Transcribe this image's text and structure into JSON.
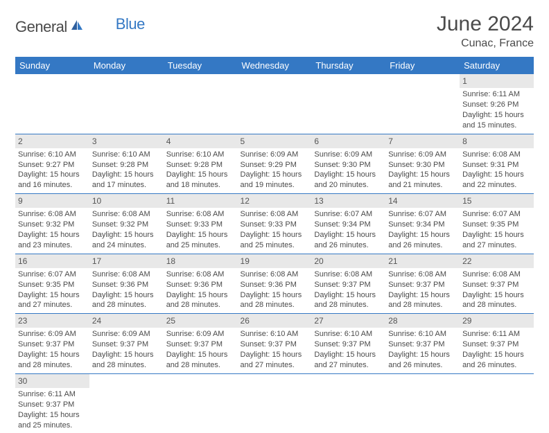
{
  "logo": {
    "part1": "General",
    "part2": "Blue"
  },
  "title": "June 2024",
  "location": "Cunac, France",
  "header_bg": "#3478c4",
  "header_fg": "#ffffff",
  "cell_border": "#3478c4",
  "daynum_bg": "#e8e8e8",
  "text_color": "#4a4a4a",
  "days": [
    "Sunday",
    "Monday",
    "Tuesday",
    "Wednesday",
    "Thursday",
    "Friday",
    "Saturday"
  ],
  "weeks": [
    [
      null,
      null,
      null,
      null,
      null,
      null,
      {
        "n": "1",
        "sr": "Sunrise: 6:11 AM",
        "ss": "Sunset: 9:26 PM",
        "dl": "Daylight: 15 hours and 15 minutes."
      }
    ],
    [
      {
        "n": "2",
        "sr": "Sunrise: 6:10 AM",
        "ss": "Sunset: 9:27 PM",
        "dl": "Daylight: 15 hours and 16 minutes."
      },
      {
        "n": "3",
        "sr": "Sunrise: 6:10 AM",
        "ss": "Sunset: 9:28 PM",
        "dl": "Daylight: 15 hours and 17 minutes."
      },
      {
        "n": "4",
        "sr": "Sunrise: 6:10 AM",
        "ss": "Sunset: 9:28 PM",
        "dl": "Daylight: 15 hours and 18 minutes."
      },
      {
        "n": "5",
        "sr": "Sunrise: 6:09 AM",
        "ss": "Sunset: 9:29 PM",
        "dl": "Daylight: 15 hours and 19 minutes."
      },
      {
        "n": "6",
        "sr": "Sunrise: 6:09 AM",
        "ss": "Sunset: 9:30 PM",
        "dl": "Daylight: 15 hours and 20 minutes."
      },
      {
        "n": "7",
        "sr": "Sunrise: 6:09 AM",
        "ss": "Sunset: 9:30 PM",
        "dl": "Daylight: 15 hours and 21 minutes."
      },
      {
        "n": "8",
        "sr": "Sunrise: 6:08 AM",
        "ss": "Sunset: 9:31 PM",
        "dl": "Daylight: 15 hours and 22 minutes."
      }
    ],
    [
      {
        "n": "9",
        "sr": "Sunrise: 6:08 AM",
        "ss": "Sunset: 9:32 PM",
        "dl": "Daylight: 15 hours and 23 minutes."
      },
      {
        "n": "10",
        "sr": "Sunrise: 6:08 AM",
        "ss": "Sunset: 9:32 PM",
        "dl": "Daylight: 15 hours and 24 minutes."
      },
      {
        "n": "11",
        "sr": "Sunrise: 6:08 AM",
        "ss": "Sunset: 9:33 PM",
        "dl": "Daylight: 15 hours and 25 minutes."
      },
      {
        "n": "12",
        "sr": "Sunrise: 6:08 AM",
        "ss": "Sunset: 9:33 PM",
        "dl": "Daylight: 15 hours and 25 minutes."
      },
      {
        "n": "13",
        "sr": "Sunrise: 6:07 AM",
        "ss": "Sunset: 9:34 PM",
        "dl": "Daylight: 15 hours and 26 minutes."
      },
      {
        "n": "14",
        "sr": "Sunrise: 6:07 AM",
        "ss": "Sunset: 9:34 PM",
        "dl": "Daylight: 15 hours and 26 minutes."
      },
      {
        "n": "15",
        "sr": "Sunrise: 6:07 AM",
        "ss": "Sunset: 9:35 PM",
        "dl": "Daylight: 15 hours and 27 minutes."
      }
    ],
    [
      {
        "n": "16",
        "sr": "Sunrise: 6:07 AM",
        "ss": "Sunset: 9:35 PM",
        "dl": "Daylight: 15 hours and 27 minutes."
      },
      {
        "n": "17",
        "sr": "Sunrise: 6:08 AM",
        "ss": "Sunset: 9:36 PM",
        "dl": "Daylight: 15 hours and 28 minutes."
      },
      {
        "n": "18",
        "sr": "Sunrise: 6:08 AM",
        "ss": "Sunset: 9:36 PM",
        "dl": "Daylight: 15 hours and 28 minutes."
      },
      {
        "n": "19",
        "sr": "Sunrise: 6:08 AM",
        "ss": "Sunset: 9:36 PM",
        "dl": "Daylight: 15 hours and 28 minutes."
      },
      {
        "n": "20",
        "sr": "Sunrise: 6:08 AM",
        "ss": "Sunset: 9:37 PM",
        "dl": "Daylight: 15 hours and 28 minutes."
      },
      {
        "n": "21",
        "sr": "Sunrise: 6:08 AM",
        "ss": "Sunset: 9:37 PM",
        "dl": "Daylight: 15 hours and 28 minutes."
      },
      {
        "n": "22",
        "sr": "Sunrise: 6:08 AM",
        "ss": "Sunset: 9:37 PM",
        "dl": "Daylight: 15 hours and 28 minutes."
      }
    ],
    [
      {
        "n": "23",
        "sr": "Sunrise: 6:09 AM",
        "ss": "Sunset: 9:37 PM",
        "dl": "Daylight: 15 hours and 28 minutes."
      },
      {
        "n": "24",
        "sr": "Sunrise: 6:09 AM",
        "ss": "Sunset: 9:37 PM",
        "dl": "Daylight: 15 hours and 28 minutes."
      },
      {
        "n": "25",
        "sr": "Sunrise: 6:09 AM",
        "ss": "Sunset: 9:37 PM",
        "dl": "Daylight: 15 hours and 28 minutes."
      },
      {
        "n": "26",
        "sr": "Sunrise: 6:10 AM",
        "ss": "Sunset: 9:37 PM",
        "dl": "Daylight: 15 hours and 27 minutes."
      },
      {
        "n": "27",
        "sr": "Sunrise: 6:10 AM",
        "ss": "Sunset: 9:37 PM",
        "dl": "Daylight: 15 hours and 27 minutes."
      },
      {
        "n": "28",
        "sr": "Sunrise: 6:10 AM",
        "ss": "Sunset: 9:37 PM",
        "dl": "Daylight: 15 hours and 26 minutes."
      },
      {
        "n": "29",
        "sr": "Sunrise: 6:11 AM",
        "ss": "Sunset: 9:37 PM",
        "dl": "Daylight: 15 hours and 26 minutes."
      }
    ],
    [
      {
        "n": "30",
        "sr": "Sunrise: 6:11 AM",
        "ss": "Sunset: 9:37 PM",
        "dl": "Daylight: 15 hours and 25 minutes."
      },
      null,
      null,
      null,
      null,
      null,
      null
    ]
  ]
}
